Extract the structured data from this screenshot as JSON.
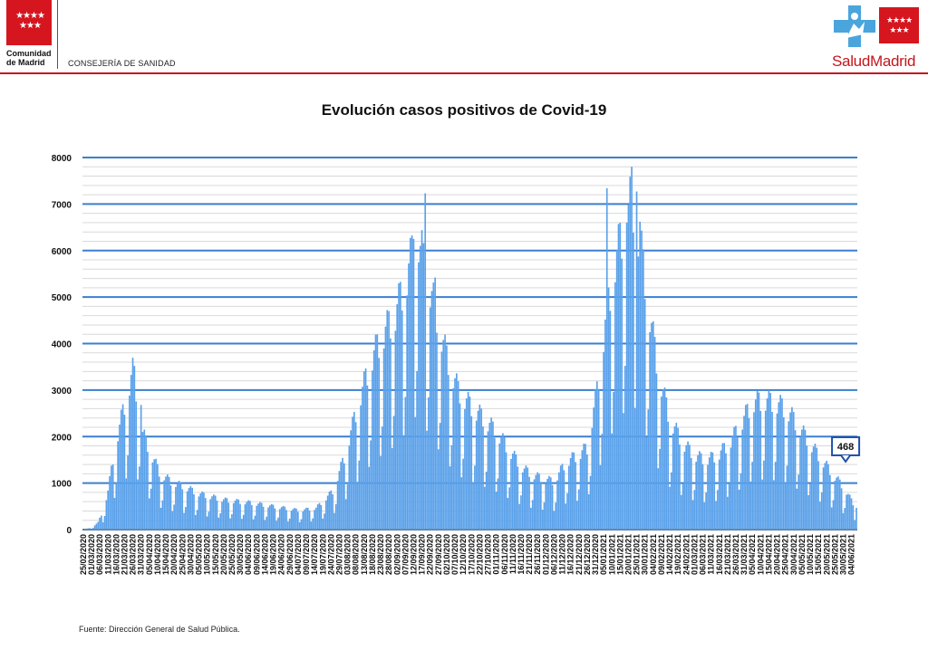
{
  "header": {
    "left_logo": {
      "icon": "comunidad-madrid-flag-icon",
      "stars": "★★★★\n★★★",
      "name_line1": "Comunidad",
      "name_line2": "de Madrid",
      "department": "CONSEJERÍA DE SANIDAD",
      "color": "#d5161f"
    },
    "right_logo": {
      "icon": "salud-madrid-cross-icon",
      "stars": "★★★★\n★★★",
      "name": "SaludMadrid",
      "cross_color": "#4aa5dd",
      "text_color": "#c4161c"
    }
  },
  "footer": {
    "source": "Fuente: Dirección General de Salud Pública."
  },
  "chart_data": {
    "type": "bar",
    "title": "Evolución casos positivos de Covid-19",
    "xlabel": "",
    "ylabel": "",
    "ylim": [
      0,
      8000
    ],
    "yticks": [
      0,
      1000,
      2000,
      3000,
      4000,
      5000,
      6000,
      7000,
      8000
    ],
    "grid": true,
    "bar_color": "#5aa1ea",
    "grid_color": "#3a7fcf",
    "x_start": "25/02/2020",
    "x_end": "07/06/2021",
    "x_tick_interval_days": 5,
    "x_ticks": [
      "25/02/2020",
      "01/03/2020",
      "06/03/2020",
      "11/03/2020",
      "16/03/2020",
      "21/03/2020",
      "26/03/2020",
      "31/03/2020",
      "05/04/2020",
      "10/04/2020",
      "15/04/2020",
      "20/04/2020",
      "25/04/2020",
      "30/04/2020",
      "05/05/2020",
      "10/05/2020",
      "15/05/2020",
      "20/05/2020",
      "25/05/2020",
      "30/05/2020",
      "04/06/2020",
      "09/06/2020",
      "14/06/2020",
      "19/06/2020",
      "24/06/2020",
      "29/06/2020",
      "04/07/2020",
      "09/07/2020",
      "14/07/2020",
      "19/07/2020",
      "24/07/2020",
      "29/07/2020",
      "03/08/2020",
      "08/08/2020",
      "13/08/2020",
      "18/08/2020",
      "23/08/2020",
      "28/08/2020",
      "02/09/2020",
      "07/09/2020",
      "12/09/2020",
      "17/09/2020",
      "22/09/2020",
      "27/09/2020",
      "02/10/2020",
      "07/10/2020",
      "12/10/2020",
      "17/10/2020",
      "22/10/2020",
      "27/10/2020",
      "01/11/2020",
      "06/11/2020",
      "11/11/2020",
      "16/11/2020",
      "21/11/2020",
      "26/11/2020",
      "01/12/2020",
      "06/12/2020",
      "11/12/2020",
      "16/12/2020",
      "21/12/2020",
      "26/12/2020",
      "31/12/2020",
      "05/01/2021",
      "10/01/2021",
      "15/01/2021",
      "20/01/2021",
      "25/01/2021",
      "30/01/2021",
      "04/02/2021",
      "09/02/2021",
      "14/02/2021",
      "19/02/2021",
      "24/02/2021",
      "01/03/2021",
      "06/03/2021",
      "11/03/2021",
      "16/03/2021",
      "21/03/2021",
      "26/03/2021",
      "31/03/2021",
      "05/04/2021",
      "10/04/2021",
      "15/04/2021",
      "20/04/2021",
      "25/04/2021",
      "30/04/2021",
      "05/05/2021",
      "10/05/2021",
      "15/05/2021",
      "20/05/2021",
      "25/05/2021",
      "30/05/2021",
      "04/06/2021"
    ],
    "trend_anchors": [
      [
        "25/02/2020",
        5
      ],
      [
        "01/03/2020",
        40
      ],
      [
        "05/03/2020",
        150
      ],
      [
        "08/03/2020",
        400
      ],
      [
        "11/03/2020",
        800
      ],
      [
        "15/03/2020",
        1700
      ],
      [
        "19/03/2020",
        2300
      ],
      [
        "23/03/2020",
        2900
      ],
      [
        "26/03/2020",
        3300
      ],
      [
        "29/03/2020",
        2700
      ],
      [
        "01/04/2020",
        2000
      ],
      [
        "06/04/2020",
        1600
      ],
      [
        "11/04/2020",
        1200
      ],
      [
        "18/04/2020",
        1000
      ],
      [
        "26/04/2020",
        900
      ],
      [
        "05/05/2020",
        750
      ],
      [
        "20/05/2020",
        620
      ],
      [
        "05/06/2020",
        560
      ],
      [
        "20/06/2020",
        480
      ],
      [
        "05/07/2020",
        400
      ],
      [
        "15/07/2020",
        450
      ],
      [
        "25/07/2020",
        800
      ],
      [
        "01/08/2020",
        1500
      ],
      [
        "10/08/2020",
        2700
      ],
      [
        "18/08/2020",
        3600
      ],
      [
        "25/08/2020",
        4100
      ],
      [
        "01/09/2020",
        4500
      ],
      [
        "08/09/2020",
        5300
      ],
      [
        "14/09/2020",
        6200
      ],
      [
        "18/09/2020",
        5600
      ],
      [
        "25/09/2020",
        4600
      ],
      [
        "02/10/2020",
        3600
      ],
      [
        "09/10/2020",
        2900
      ],
      [
        "16/10/2020",
        2600
      ],
      [
        "25/10/2020",
        2300
      ],
      [
        "02/11/2020",
        2000
      ],
      [
        "10/11/2020",
        1600
      ],
      [
        "18/11/2020",
        1250
      ],
      [
        "26/11/2020",
        1100
      ],
      [
        "06/12/2020",
        1000
      ],
      [
        "13/12/2020",
        1400
      ],
      [
        "20/12/2020",
        1550
      ],
      [
        "26/12/2020",
        1700
      ],
      [
        "01/01/2021",
        2900
      ],
      [
        "06/01/2021",
        4300
      ],
      [
        "12/01/2021",
        5600
      ],
      [
        "18/01/2021",
        6400
      ],
      [
        "22/01/2021",
        6900
      ],
      [
        "27/01/2021",
        6000
      ],
      [
        "01/02/2021",
        4700
      ],
      [
        "07/02/2021",
        3300
      ],
      [
        "14/02/2021",
        2300
      ],
      [
        "22/02/2021",
        1800
      ],
      [
        "01/03/2021",
        1550
      ],
      [
        "08/03/2021",
        1450
      ],
      [
        "15/03/2021",
        1550
      ],
      [
        "22/03/2021",
        1800
      ],
      [
        "29/03/2021",
        2200
      ],
      [
        "05/04/2021",
        2650
      ],
      [
        "12/04/2021",
        2700
      ],
      [
        "19/04/2021",
        2650
      ],
      [
        "26/04/2021",
        2500
      ],
      [
        "03/05/2021",
        2150
      ],
      [
        "10/05/2021",
        1800
      ],
      [
        "17/05/2021",
        1450
      ],
      [
        "24/05/2021",
        1150
      ],
      [
        "31/05/2021",
        850
      ],
      [
        "05/06/2021",
        550
      ],
      [
        "07/06/2021",
        468
      ]
    ],
    "weekday_factors": [
      0.55,
      0.95,
      1.05,
      1.12,
      1.1,
      0.95,
      0.4
    ],
    "spikes": [
      [
        "27/03/2020",
        3520
      ],
      [
        "31/03/2020",
        2680
      ],
      [
        "12/09/2020",
        6250
      ],
      [
        "16/09/2020",
        6100
      ],
      [
        "19/09/2020",
        7230
      ],
      [
        "25/09/2020",
        5420
      ],
      [
        "07/01/2021",
        7340
      ],
      [
        "19/01/2021",
        6600
      ],
      [
        "22/01/2021",
        7800
      ],
      [
        "25/01/2021",
        7270
      ],
      [
        "27/01/2021",
        6620
      ]
    ],
    "last_value_label": "468",
    "last_value": 468
  }
}
